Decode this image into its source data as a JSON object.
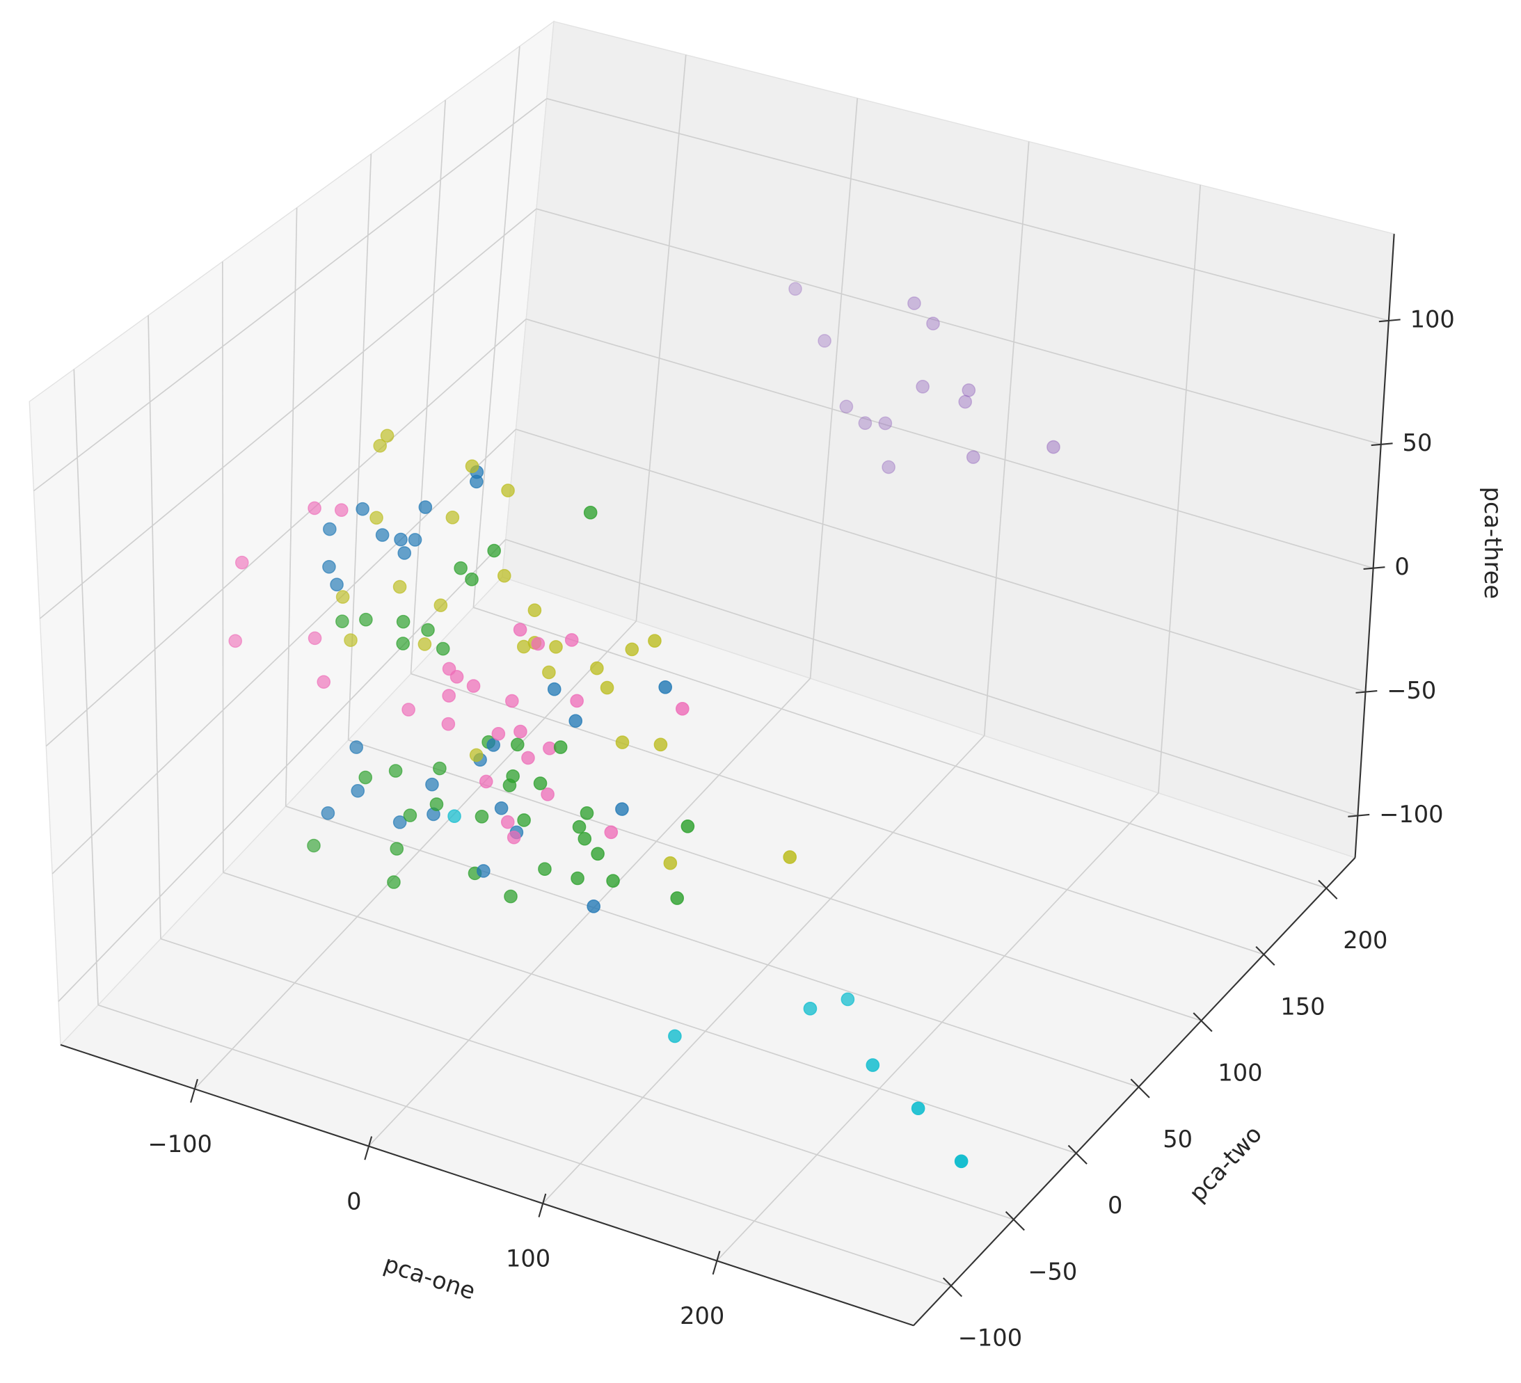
{
  "chart_data": {
    "type": "scatter3d",
    "xlabel": "pca-one",
    "ylabel": "pca-two",
    "zlabel": "pca-three",
    "xlim": [
      -177,
      313
    ],
    "ylim": [
      -130,
      223
    ],
    "zlim": [
      -117,
      135
    ],
    "xticks": [
      {
        "value": -100,
        "label": "−100"
      },
      0,
      100,
      200
    ],
    "yticks": [
      {
        "value": -100,
        "label": "−100"
      },
      {
        "value": -50,
        "label": "−50"
      },
      0,
      50,
      100,
      150,
      200
    ],
    "zticks": [
      {
        "value": -100,
        "label": "−100"
      },
      {
        "value": -50,
        "label": "−50"
      },
      0,
      50,
      100
    ],
    "grid": true,
    "series": [
      {
        "color": "#1f77b4",
        "x": [
          -76,
          -97,
          -63,
          -54,
          -49,
          -52,
          -36,
          -9,
          -11,
          -96,
          -90,
          34,
          97,
          46,
          -80,
          -2,
          -13,
          -38,
          -78,
          2,
          9,
          72,
          -97,
          -57,
          -39,
          -9,
          56
        ],
        "y": [
          -24,
          -22,
          -26,
          -24,
          -20,
          -24,
          -28,
          -24,
          -22,
          -24,
          -26,
          -24,
          -22,
          -24,
          -26,
          -24,
          -20,
          -24,
          -28,
          -24,
          -22,
          -24,
          -26,
          -24,
          -22,
          -24,
          -26
        ],
        "z": [
          64,
          51,
          57,
          56,
          55,
          51,
          74,
          91,
          86,
          37,
          32,
          14,
          26,
          4,
          -31,
          -15,
          -25,
          -38,
          -47,
          -39,
          -48,
          -25,
          -61,
          -57,
          -51,
          -66,
          -65
        ]
      },
      {
        "color": "#2ca02c",
        "x": [
          57,
          2,
          -21,
          -13,
          -92,
          -75,
          -50,
          -39,
          -52,
          -32,
          12,
          37,
          -8,
          -75,
          -59,
          -35,
          9,
          28,
          7,
          -11,
          -51,
          -34,
          15,
          50,
          47,
          50,
          59,
          110,
          -110,
          -59,
          -58,
          -14,
          25,
          47,
          66,
          103,
          5
        ],
        "y": [
          -24,
          -26,
          -22,
          -24,
          -20,
          -24,
          -28,
          -24,
          -26,
          -22,
          -24,
          -24,
          -20,
          -26,
          -24,
          -22,
          -24,
          -28,
          -24,
          -22,
          -24,
          -26,
          -24,
          -22,
          -24,
          -24,
          -26,
          -24,
          -20,
          -24,
          -28,
          -24,
          -22,
          -26,
          -24,
          -24,
          -22
        ],
        "z": [
          87,
          63,
          50,
          48,
          14,
          20,
          26,
          23,
          16,
          16,
          -12,
          -8,
          -17,
          -42,
          -37,
          -32,
          -25,
          -22,
          -29,
          -46,
          -53,
          -44,
          -41,
          -32,
          -37,
          -41,
          -44,
          -24,
          -80,
          -68,
          -79,
          -68,
          -59,
          -56,
          -54,
          -53,
          -74
        ]
      },
      {
        "color": "#bcbd22",
        "x": [
          -61,
          -67,
          -10,
          9,
          -68,
          -27,
          6,
          -85,
          -55,
          -33,
          25,
          -84,
          -41,
          15,
          23,
          37,
          93,
          78,
          31,
          59,
          68,
          73,
          92,
          -12,
          101,
          169
        ],
        "y": [
          -24,
          -22,
          -26,
          -24,
          -24,
          -20,
          -24,
          -28,
          -24,
          -22,
          -26,
          -24,
          -24,
          -22,
          -24,
          -26,
          -24,
          -22,
          -24,
          -24,
          -28,
          -24,
          -20,
          -24,
          -26,
          -24
        ],
        "z": [
          96,
          90,
          94,
          87,
          62,
          68,
          53,
          29,
          37,
          33,
          44,
          10,
          17,
          26,
          30,
          32,
          44,
          37,
          20,
          27,
          23,
          1,
          2,
          -21,
          -39,
          -24
        ]
      },
      {
        "color": "#ee6cb8",
        "x": [
          -104,
          -90,
          -145,
          -151,
          -108,
          -100,
          18,
          25,
          43,
          -27,
          -21,
          -13,
          -29,
          47,
          110,
          -51,
          6,
          -28,
          17,
          1,
          29,
          18,
          -5,
          29,
          4,
          9,
          67
        ],
        "y": [
          -24,
          -22,
          -26,
          -24,
          -20,
          -24,
          -28,
          -24,
          -22,
          -24,
          -26,
          -24,
          -22,
          -24,
          -26,
          -24,
          -20,
          -24,
          -28,
          -24,
          -22,
          -24,
          -26,
          -24,
          -22,
          -24,
          -26
        ],
        "z": [
          59,
          60,
          30,
          -4,
          4,
          -10,
          36,
          30,
          34,
          10,
          9,
          6,
          -2,
          12,
          22,
          -11,
          2,
          -12,
          -4,
          -10,
          -11,
          -16,
          -29,
          -28,
          -45,
          -49,
          -34
        ]
      },
      {
        "color": "#9467bd",
        "x": [
          14,
          34,
          81,
          94,
          90,
          118,
          114,
          47,
          59,
          69,
          121,
          165,
          73
        ],
        "y": [
          170,
          168,
          172,
          170,
          170,
          168,
          171,
          170,
          169,
          171,
          170,
          172,
          170
        ],
        "z": [
          81,
          64,
          87,
          82,
          55,
          60,
          53,
          38,
          34,
          35,
          32,
          44,
          18
        ]
      },
      {
        "color": "#17becf",
        "x": [
          103,
          154,
          161,
          203,
          240,
          280,
          -16
        ],
        "y": [
          -28,
          9,
          29,
          -9,
          -24,
          -45,
          -36
        ],
        "z": [
          -104,
          -101,
          -106,
          -103,
          -104,
          -105,
          -40
        ]
      }
    ]
  }
}
